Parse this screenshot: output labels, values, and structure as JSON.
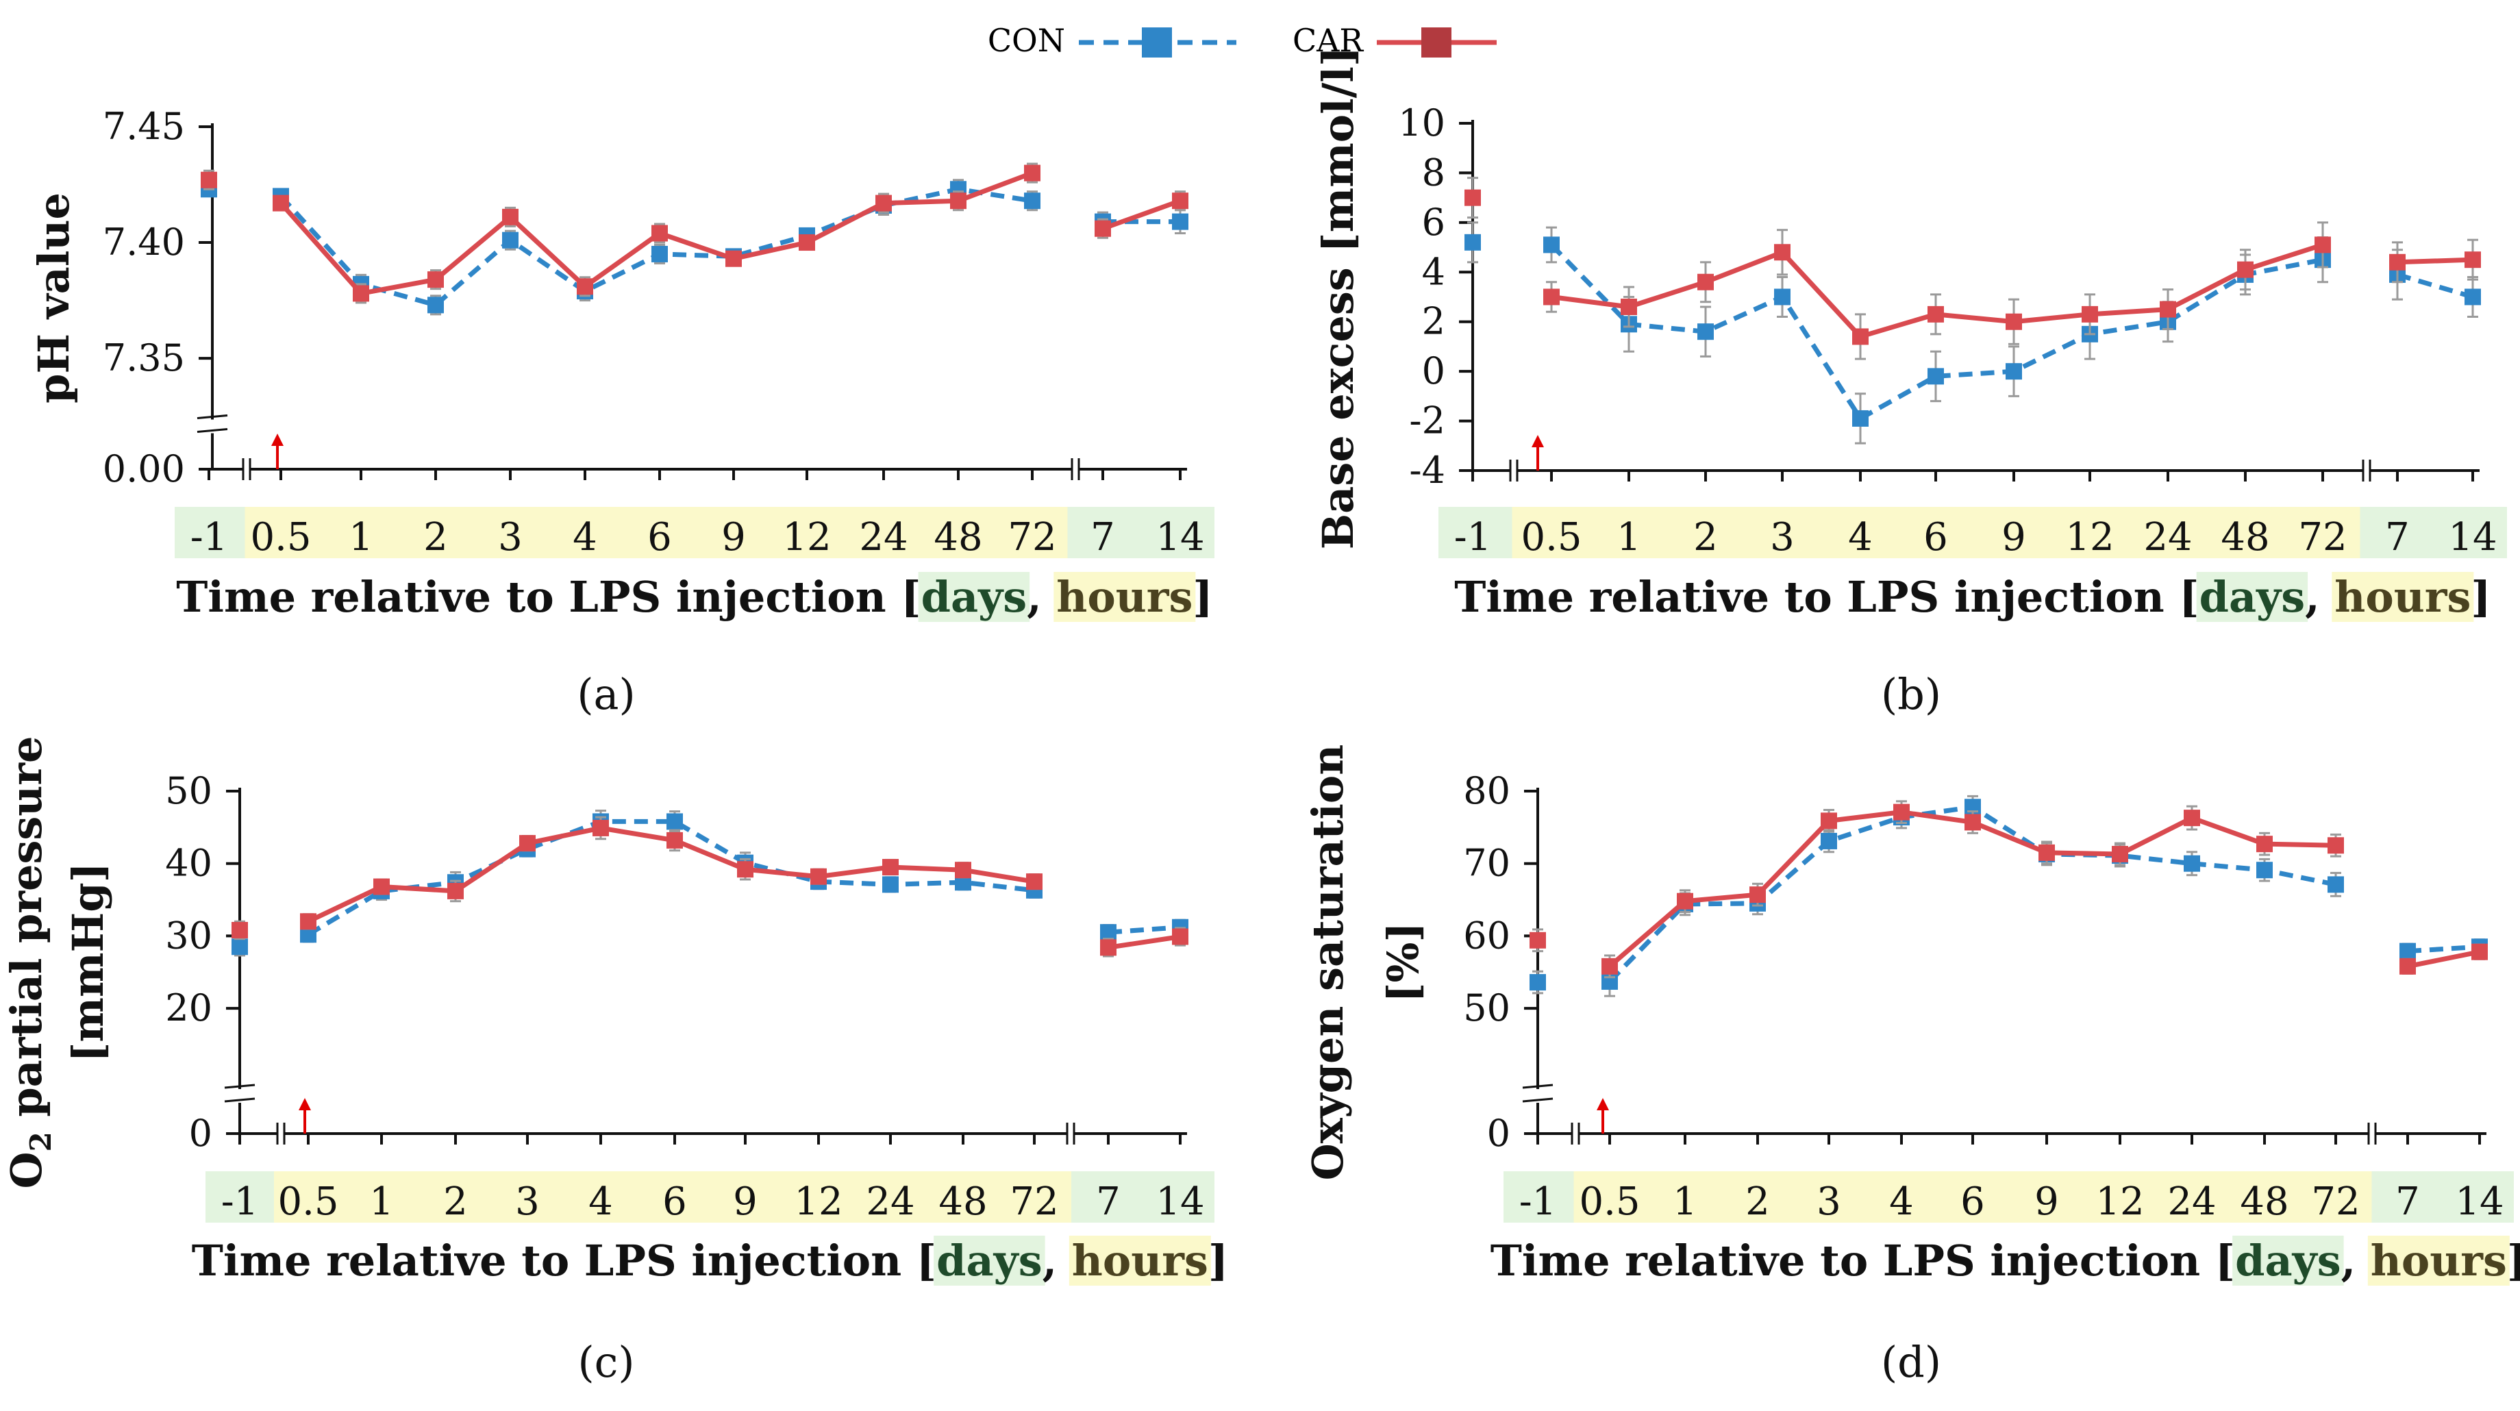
{
  "legend": {
    "con_label": "CON",
    "car_label": "CAR"
  },
  "colors": {
    "con": "#2f86c8",
    "car": "#d94a4f",
    "days_bg": "#e3f4df",
    "hours_bg": "#fbf9cb",
    "arrow": "#e00000",
    "axis": "#111111",
    "error": "#9a9a9a"
  },
  "chart_data": [
    {
      "id": "a",
      "type": "line",
      "caption": "(a)",
      "ylabel": "pH value",
      "xlabel": {
        "prefix": "Time relative to LPS injection [",
        "days": "days",
        "sep": ", ",
        "hours": "hours",
        "suffix": "]"
      },
      "categories": [
        "-1",
        "0.5",
        "1",
        "2",
        "3",
        "4",
        "6",
        "9",
        "12",
        "24",
        "48",
        "72",
        "7",
        "14"
      ],
      "category_units": [
        "days",
        "hours",
        "hours",
        "hours",
        "hours",
        "hours",
        "hours",
        "hours",
        "hours",
        "hours",
        "hours",
        "hours",
        "days",
        "days"
      ],
      "ylim": [
        7.345,
        7.45
      ],
      "yticks": [
        7.35,
        7.4,
        7.45
      ],
      "ytick_labels": [
        "7.35",
        "7.40",
        "7.45"
      ],
      "ybase_label": "0.00",
      "series": [
        {
          "name": "CON",
          "values": [
            7.423,
            7.42,
            7.382,
            7.373,
            7.401,
            7.379,
            7.395,
            7.394,
            7.403,
            7.416,
            7.423,
            7.418,
            7.409,
            7.409
          ],
          "errors": [
            0.003,
            0.003,
            0.004,
            0.004,
            0.004,
            0.004,
            0.004,
            0.003,
            0.003,
            0.004,
            0.004,
            0.004,
            0.004,
            0.005
          ]
        },
        {
          "name": "CAR",
          "values": [
            7.427,
            7.417,
            7.378,
            7.384,
            7.411,
            7.381,
            7.404,
            7.393,
            7.4,
            7.417,
            7.418,
            7.43,
            7.406,
            7.418
          ],
          "errors": [
            0.004,
            0.003,
            0.004,
            0.004,
            0.004,
            0.004,
            0.004,
            0.003,
            0.003,
            0.004,
            0.004,
            0.004,
            0.004,
            0.004
          ]
        }
      ]
    },
    {
      "id": "b",
      "type": "line",
      "caption": "(b)",
      "ylabel": "Base excess [mmol/l]",
      "xlabel": {
        "prefix": "Time relative to LPS injection [",
        "days": "days",
        "sep": ", ",
        "hours": "hours",
        "suffix": "]"
      },
      "categories": [
        "-1",
        "0.5",
        "1",
        "2",
        "3",
        "4",
        "6",
        "9",
        "12",
        "24",
        "48",
        "72",
        "7",
        "14"
      ],
      "category_units": [
        "days",
        "hours",
        "hours",
        "hours",
        "hours",
        "hours",
        "hours",
        "hours",
        "hours",
        "hours",
        "hours",
        "hours",
        "days",
        "days"
      ],
      "ylim": [
        -4,
        10
      ],
      "yticks": [
        -4,
        -2,
        0,
        2,
        4,
        6,
        8,
        10
      ],
      "ytick_labels": [
        "-4",
        "-2",
        "0",
        "2",
        "4",
        "6",
        "8",
        "10"
      ],
      "series": [
        {
          "name": "CON",
          "values": [
            5.2,
            5.1,
            1.9,
            1.6,
            3.0,
            -1.9,
            -0.2,
            0.0,
            1.5,
            2.0,
            3.9,
            4.5,
            3.9,
            3.0
          ],
          "errors": [
            0.8,
            0.7,
            1.1,
            1.0,
            0.8,
            1.0,
            1.0,
            1.0,
            1.0,
            0.8,
            0.8,
            0.9,
            1.0,
            0.8
          ]
        },
        {
          "name": "CAR",
          "values": [
            7.0,
            3.0,
            2.6,
            3.6,
            4.8,
            1.4,
            2.3,
            2.0,
            2.3,
            2.5,
            4.1,
            5.1,
            4.4,
            4.5
          ],
          "errors": [
            0.8,
            0.6,
            0.8,
            0.8,
            0.9,
            0.9,
            0.8,
            0.9,
            0.8,
            0.8,
            0.8,
            0.9,
            0.8,
            0.8
          ]
        }
      ]
    },
    {
      "id": "c",
      "type": "line",
      "caption": "(c)",
      "ylabel_parts": {
        "main": "O",
        "sub": "2",
        "rest": " partial pressure",
        "unit": "[mmHg]"
      },
      "xlabel": {
        "prefix": "Time relative to LPS injection [",
        "days": "days",
        "sep": ", ",
        "hours": "hours",
        "suffix": "]"
      },
      "categories": [
        "-1",
        "0.5",
        "1",
        "2",
        "3",
        "4",
        "6",
        "9",
        "12",
        "24",
        "48",
        "72",
        "7",
        "14"
      ],
      "category_units": [
        "days",
        "hours",
        "hours",
        "hours",
        "hours",
        "hours",
        "hours",
        "hours",
        "hours",
        "hours",
        "hours",
        "hours",
        "days",
        "days"
      ],
      "ylim": [
        15,
        50
      ],
      "yticks": [
        20,
        30,
        40,
        50
      ],
      "ytick_labels": [
        "20",
        "30",
        "40",
        "50"
      ],
      "ybase_label": "0",
      "series": [
        {
          "name": "CON",
          "values": [
            28.5,
            30.2,
            36.2,
            37.4,
            42.0,
            45.8,
            45.8,
            40.1,
            37.5,
            37.1,
            37.4,
            36.3,
            30.5,
            31.2
          ],
          "errors": [
            1.2,
            1.0,
            1.2,
            1.4,
            1.0,
            1.5,
            1.4,
            1.4,
            1.0,
            1.0,
            1.0,
            1.0,
            1.0,
            1.0
          ]
        },
        {
          "name": "CAR",
          "values": [
            30.8,
            32.0,
            36.8,
            36.2,
            42.8,
            44.9,
            43.2,
            39.2,
            38.2,
            39.5,
            39.1,
            37.5,
            28.4,
            29.9
          ],
          "errors": [
            1.2,
            1.0,
            1.0,
            1.4,
            1.0,
            1.5,
            1.4,
            1.4,
            1.0,
            1.0,
            1.0,
            1.0,
            1.2,
            1.2
          ]
        }
      ]
    },
    {
      "id": "d",
      "type": "line",
      "caption": "(d)",
      "ylabel_parts": {
        "line1": "Oxygen saturation",
        "line2": "[%]"
      },
      "xlabel": {
        "prefix": "Time relative to LPS injection [",
        "days": "days",
        "sep": ", ",
        "hours": "hours",
        "suffix": "]"
      },
      "categories": [
        "-1",
        "0.5",
        "1",
        "2",
        "3",
        "4",
        "6",
        "9",
        "12",
        "24",
        "48",
        "72",
        "7",
        "14"
      ],
      "category_units": [
        "days",
        "hours",
        "hours",
        "hours",
        "hours",
        "hours",
        "hours",
        "hours",
        "hours",
        "hours",
        "hours",
        "hours",
        "days",
        "days"
      ],
      "ylim": [
        45,
        80
      ],
      "yticks": [
        50,
        60,
        70,
        80
      ],
      "ytick_labels": [
        "50",
        "60",
        "70",
        "80"
      ],
      "ybase_label": "0",
      "series": [
        {
          "name": "CON",
          "values": [
            53.6,
            53.7,
            64.4,
            64.5,
            73.1,
            76.4,
            77.8,
            71.3,
            71.1,
            70.0,
            69.1,
            67.1,
            57.9,
            58.5
          ],
          "errors": [
            1.5,
            2.0,
            1.5,
            1.5,
            1.5,
            1.5,
            1.5,
            1.5,
            1.5,
            1.6,
            1.5,
            1.6,
            1.0,
            1.0
          ]
        },
        {
          "name": "CAR",
          "values": [
            59.4,
            55.8,
            64.8,
            65.7,
            75.9,
            77.1,
            75.7,
            71.5,
            71.3,
            76.3,
            72.7,
            72.5,
            55.8,
            57.8
          ],
          "errors": [
            1.5,
            1.5,
            1.5,
            1.5,
            1.5,
            1.5,
            1.5,
            1.5,
            1.5,
            1.6,
            1.5,
            1.5,
            1.0,
            1.0
          ]
        }
      ]
    }
  ]
}
